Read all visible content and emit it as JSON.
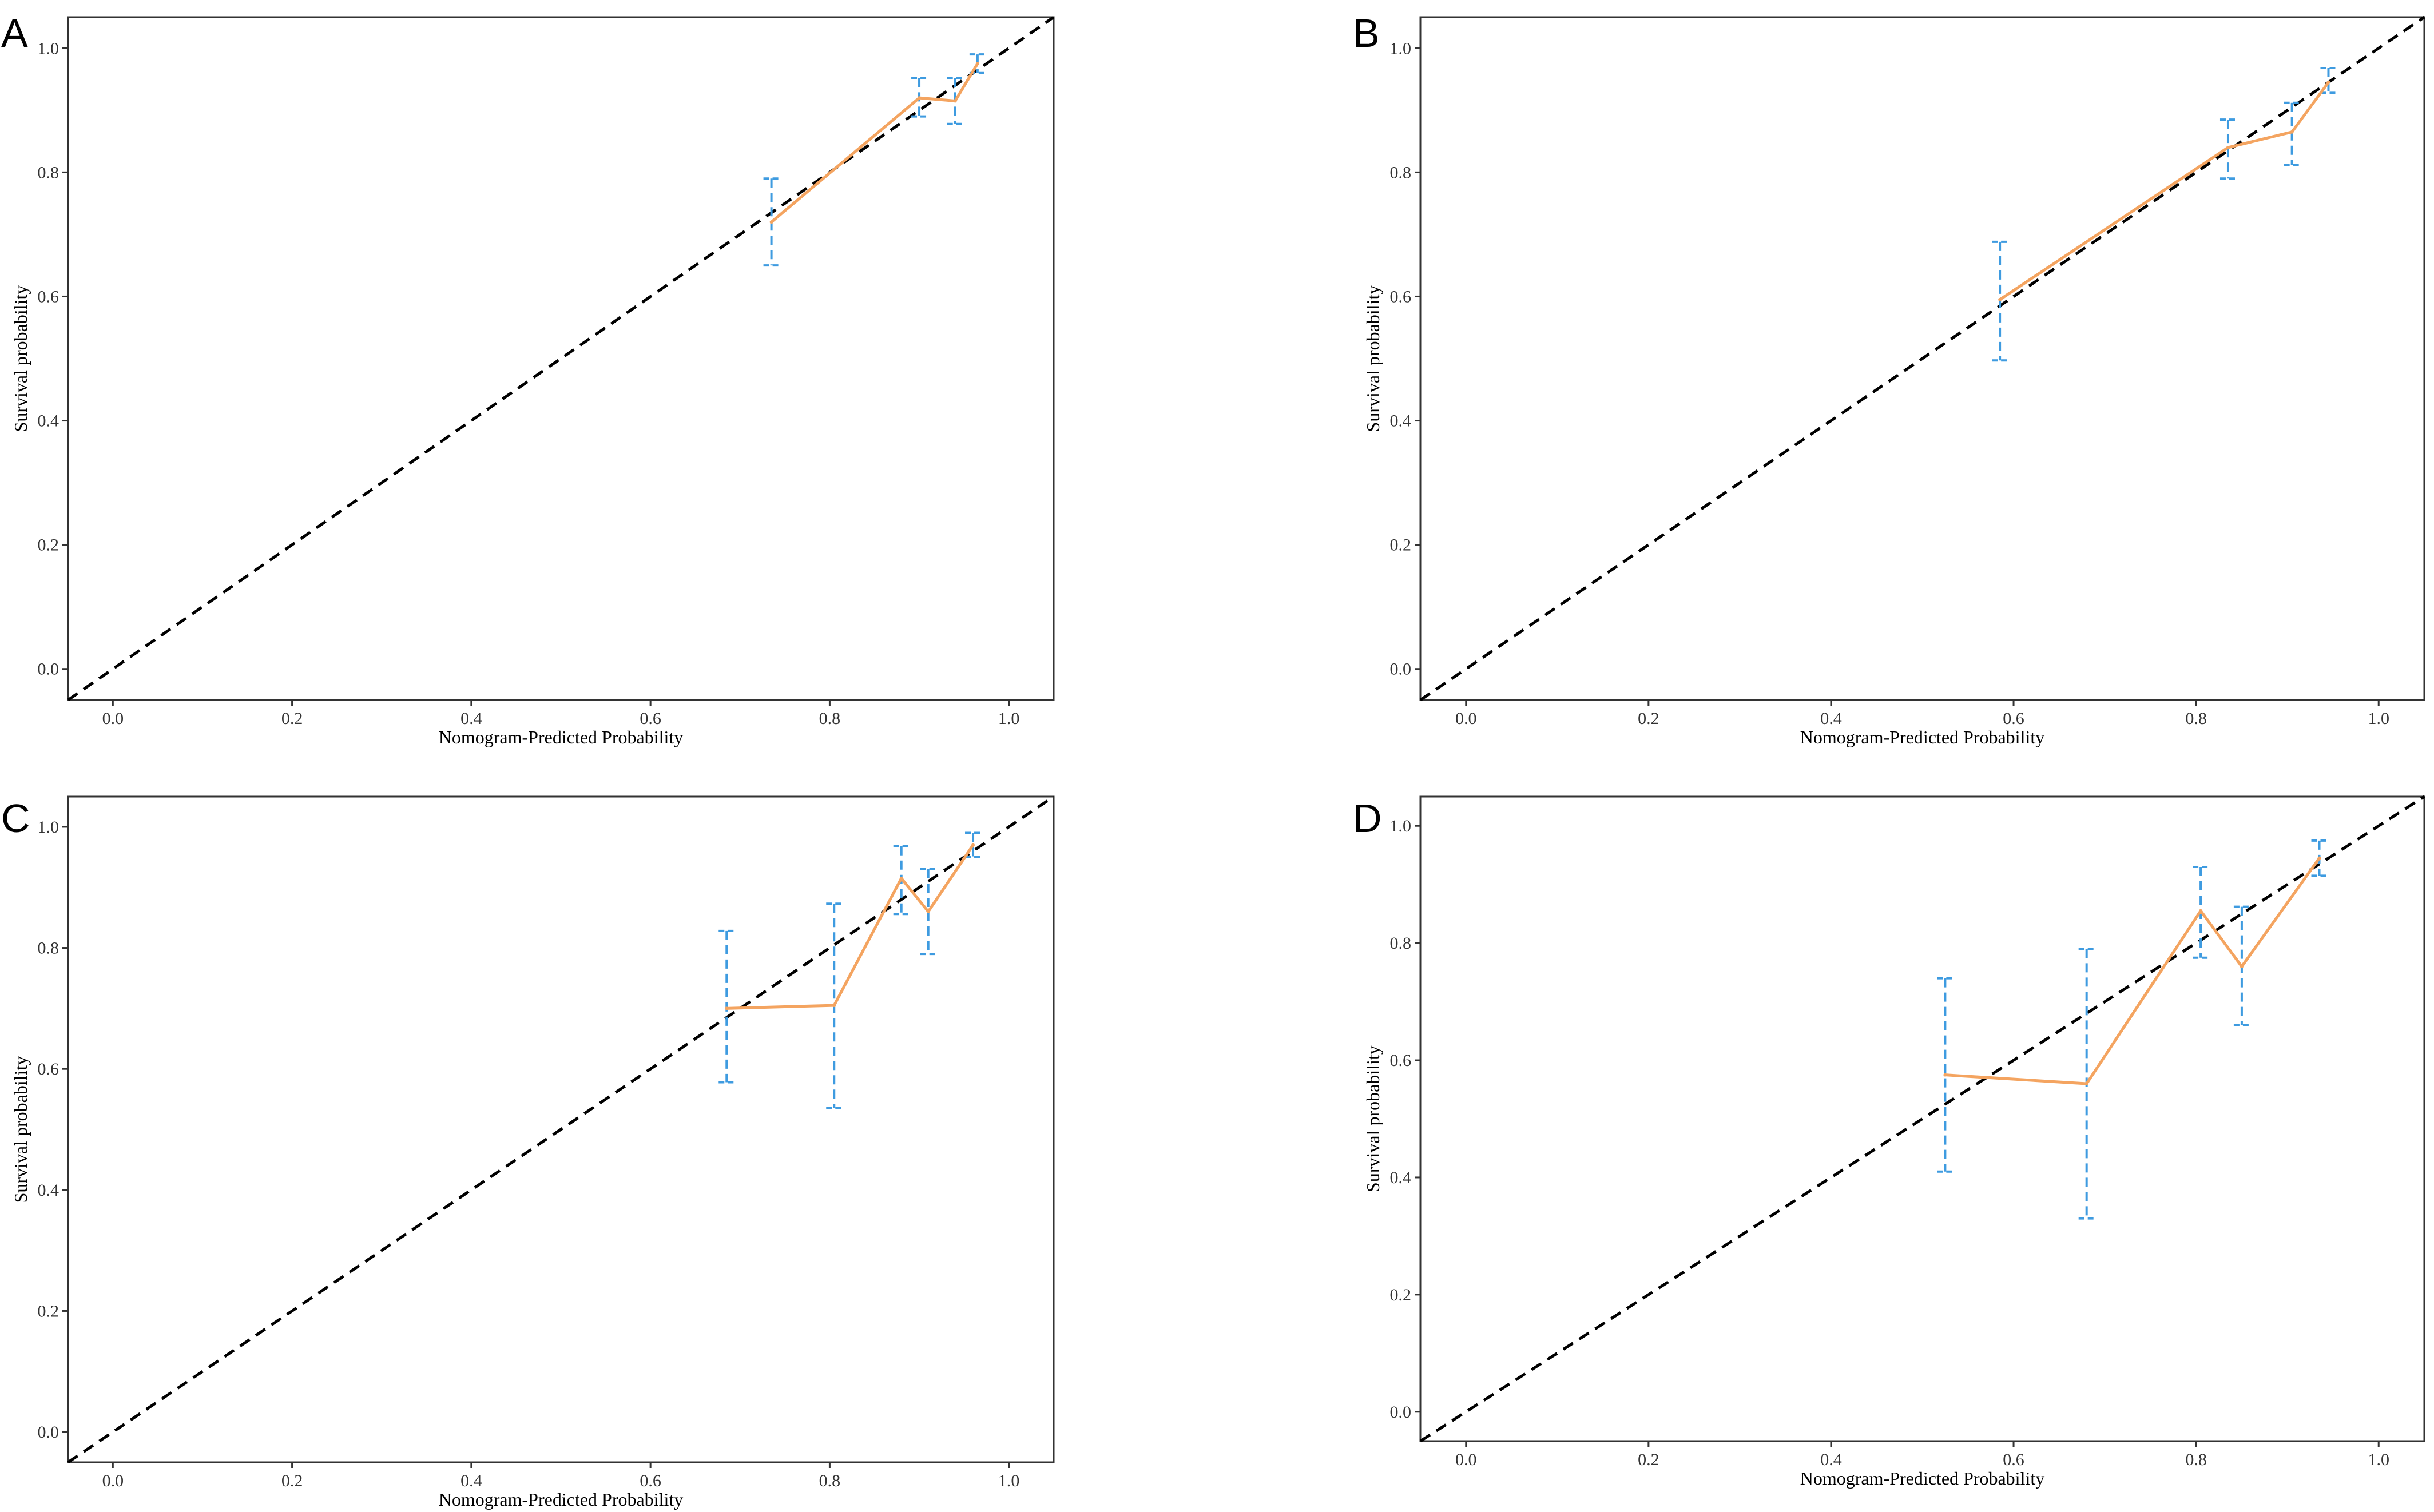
{
  "figure": {
    "colors": {
      "calibration_line": "#F4A460",
      "error_bar": "#3E9BE0",
      "ideal_line": "#000000"
    }
  },
  "chart_data": [
    {
      "panel": "A",
      "type": "line",
      "xlabel": "Nomogram-Predicted Probability",
      "ylabel": "Survival probability",
      "xlim": [
        -0.05,
        1.05
      ],
      "ylim": [
        -0.05,
        1.05
      ],
      "xticks": [
        "0.0",
        "0.2",
        "0.4",
        "0.6",
        "0.8",
        "1.0"
      ],
      "yticks": [
        "0.0",
        "0.2",
        "0.4",
        "0.6",
        "0.8",
        "1.0"
      ],
      "reference_line": {
        "name": "ideal",
        "x": [
          -0.05,
          1.05
        ],
        "y": [
          -0.05,
          1.05
        ],
        "style": "dashed"
      },
      "series": [
        {
          "name": "calibration",
          "x": [
            0.735,
            0.9,
            0.94,
            0.965
          ],
          "y": [
            0.72,
            0.92,
            0.915,
            0.975
          ],
          "ci_lower": [
            0.65,
            0.89,
            0.878,
            0.96
          ],
          "ci_upper": [
            0.79,
            0.952,
            0.952,
            0.99
          ]
        }
      ]
    },
    {
      "panel": "B",
      "type": "line",
      "xlabel": "Nomogram-Predicted Probability",
      "ylabel": "Survival probability",
      "xlim": [
        -0.05,
        1.05
      ],
      "ylim": [
        -0.05,
        1.05
      ],
      "xticks": [
        "0.0",
        "0.2",
        "0.4",
        "0.6",
        "0.8",
        "1.0"
      ],
      "yticks": [
        "0.0",
        "0.2",
        "0.4",
        "0.6",
        "0.8",
        "1.0"
      ],
      "reference_line": {
        "name": "ideal",
        "x": [
          -0.05,
          1.05
        ],
        "y": [
          -0.05,
          1.05
        ],
        "style": "dashed"
      },
      "series": [
        {
          "name": "calibration",
          "x": [
            0.585,
            0.835,
            0.905,
            0.945
          ],
          "y": [
            0.595,
            0.84,
            0.865,
            0.945
          ],
          "ci_lower": [
            0.497,
            0.79,
            0.812,
            0.928
          ],
          "ci_upper": [
            0.688,
            0.885,
            0.912,
            0.968
          ]
        }
      ]
    },
    {
      "panel": "C",
      "type": "line",
      "xlabel": "Nomogram-Predicted Probability",
      "ylabel": "Survival probability",
      "xlim": [
        -0.05,
        1.05
      ],
      "ylim": [
        -0.05,
        1.05
      ],
      "xticks": [
        "0.0",
        "0.2",
        "0.4",
        "0.6",
        "0.8",
        "1.0"
      ],
      "yticks": [
        "0.0",
        "0.2",
        "0.4",
        "0.6",
        "0.8",
        "1.0"
      ],
      "reference_line": {
        "name": "ideal",
        "x": [
          -0.05,
          1.05
        ],
        "y": [
          -0.05,
          1.05
        ],
        "style": "dashed"
      },
      "series": [
        {
          "name": "calibration",
          "x": [
            0.685,
            0.805,
            0.88,
            0.91,
            0.96
          ],
          "y": [
            0.7,
            0.705,
            0.915,
            0.86,
            0.97
          ],
          "ci_lower": [
            0.578,
            0.535,
            0.856,
            0.79,
            0.95
          ],
          "ci_upper": [
            0.828,
            0.873,
            0.968,
            0.93,
            0.99
          ]
        }
      ]
    },
    {
      "panel": "D",
      "type": "line",
      "xlabel": "Nomogram-Predicted Probability",
      "ylabel": "Survival probability",
      "xlim": [
        -0.05,
        1.05
      ],
      "ylim": [
        -0.05,
        1.05
      ],
      "xticks": [
        "0.0",
        "0.2",
        "0.4",
        "0.6",
        "0.8",
        "1.0"
      ],
      "yticks": [
        "0.0",
        "0.2",
        "0.4",
        "0.6",
        "0.8",
        "1.0"
      ],
      "reference_line": {
        "name": "ideal",
        "x": [
          -0.05,
          1.05
        ],
        "y": [
          -0.05,
          1.05
        ],
        "style": "dashed"
      },
      "series": [
        {
          "name": "calibration",
          "x": [
            0.525,
            0.68,
            0.805,
            0.85,
            0.935
          ],
          "y": [
            0.575,
            0.56,
            0.855,
            0.76,
            0.945
          ],
          "ci_lower": [
            0.41,
            0.33,
            0.775,
            0.66,
            0.915
          ],
          "ci_upper": [
            0.74,
            0.79,
            0.93,
            0.862,
            0.975
          ]
        }
      ]
    }
  ]
}
